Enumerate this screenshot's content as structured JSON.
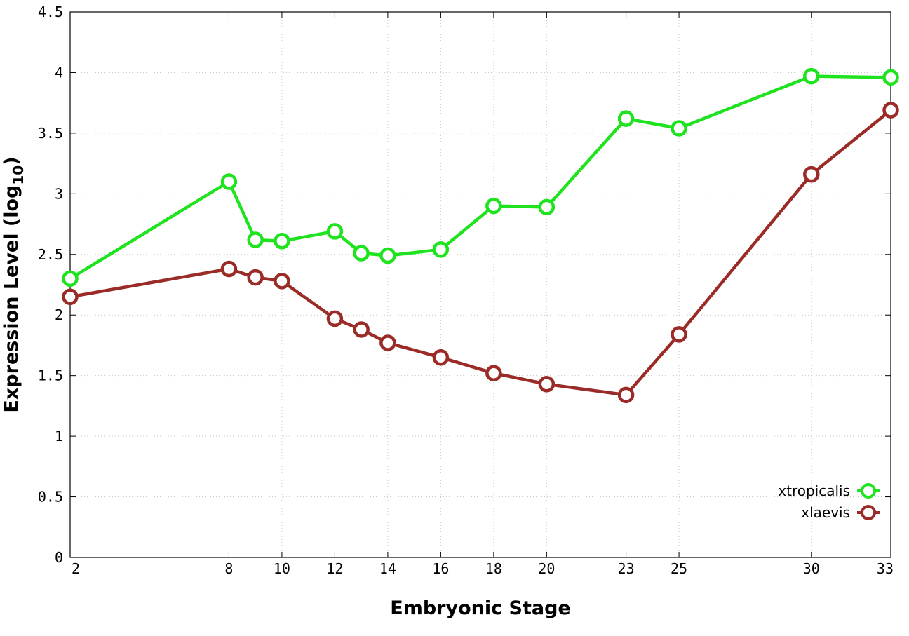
{
  "chart_data": {
    "type": "line",
    "xlabel": "Embryonic Stage",
    "ylabel_main": "Expression Level (log",
    "ylabel_sub": "10",
    "ylabel_close": ")",
    "xlim": [
      2,
      33
    ],
    "ylim": [
      0,
      4.5
    ],
    "x_ticks": [
      2,
      8,
      10,
      12,
      14,
      16,
      18,
      20,
      23,
      25,
      30,
      33
    ],
    "x_tick_labels": [
      "2",
      "8",
      "10",
      "12",
      "14",
      "16",
      "18",
      "20",
      "23",
      "25",
      "30",
      "33"
    ],
    "y_ticks": [
      0,
      0.5,
      1,
      1.5,
      2,
      2.5,
      3,
      3.5,
      4,
      4.5
    ],
    "y_tick_labels": [
      "0",
      "0.5",
      "1",
      "1.5",
      "2",
      "2.5",
      "3",
      "3.5",
      "4",
      "4.5"
    ],
    "grid": true,
    "legend_position": "bottom-right",
    "series": [
      {
        "name": "xtropicalis",
        "color": "#1ee31e",
        "x": [
          2,
          8,
          9,
          10,
          12,
          13,
          14,
          16,
          18,
          20,
          23,
          25,
          30,
          33
        ],
        "values": [
          2.3,
          3.1,
          2.62,
          2.61,
          2.69,
          2.51,
          2.49,
          2.54,
          2.9,
          2.89,
          3.62,
          3.54,
          3.97,
          3.96
        ]
      },
      {
        "name": "xlaevis",
        "color": "#9a2b27",
        "x": [
          2,
          8,
          9,
          10,
          12,
          13,
          14,
          16,
          18,
          20,
          23,
          25,
          30,
          33
        ],
        "values": [
          2.15,
          2.38,
          2.31,
          2.28,
          1.97,
          1.88,
          1.77,
          1.65,
          1.52,
          1.43,
          1.34,
          1.84,
          3.16,
          3.69
        ]
      }
    ]
  }
}
